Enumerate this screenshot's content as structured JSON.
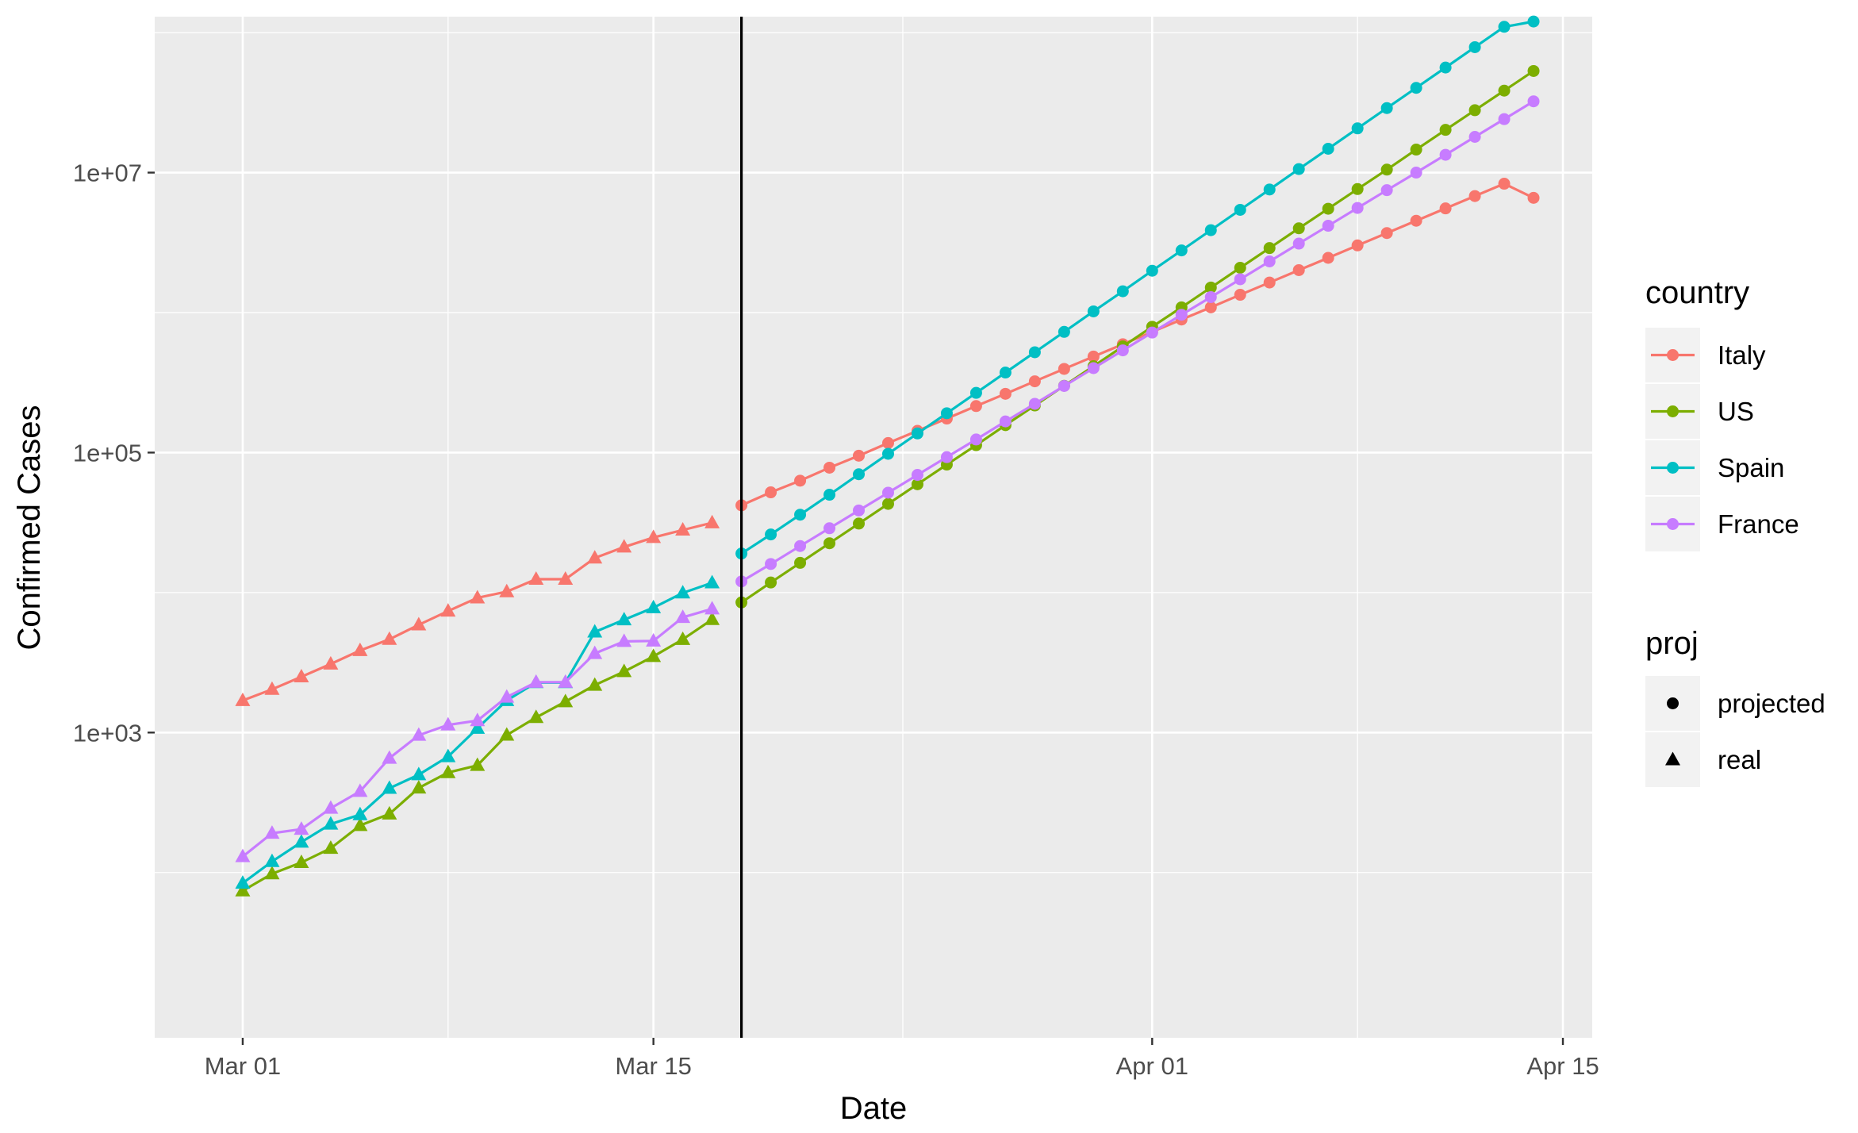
{
  "chart_data": {
    "type": "line",
    "x_axis": {
      "label": "Date",
      "ticks": [
        "Mar 01",
        "Mar 15",
        "Apr 01",
        "Apr 15"
      ],
      "tick_dates": [
        "2020-03-01",
        "2020-03-15",
        "2020-04-01",
        "2020-04-15"
      ],
      "range": [
        "2020-02-27",
        "2020-04-16"
      ]
    },
    "y_axis": {
      "label": "Confirmed Cases",
      "scale": "log10",
      "ticks": [
        "1e+03",
        "1e+05",
        "1e+07"
      ],
      "tick_values": [
        1000,
        100000,
        10000000
      ],
      "range": [
        6.6,
        130000000
      ]
    },
    "vline": {
      "x": "2020-03-18"
    },
    "grid": true,
    "legend_position": "right",
    "legends": {
      "color": {
        "title": "country",
        "entries": [
          "Italy",
          "US",
          "Spain",
          "France"
        ]
      },
      "shape": {
        "title": "proj",
        "entries": [
          "projected",
          "real"
        ]
      }
    },
    "colors": {
      "Italy": "#F8766D",
      "US": "#7CAE00",
      "Spain": "#00BFC4",
      "France": "#C77CFF"
    },
    "series": [
      {
        "name": "Italy",
        "real": {
          "x": [
            "2020-03-01",
            "2020-03-02",
            "2020-03-03",
            "2020-03-04",
            "2020-03-05",
            "2020-03-06",
            "2020-03-07",
            "2020-03-08",
            "2020-03-09",
            "2020-03-10",
            "2020-03-11",
            "2020-03-12",
            "2020-03-13",
            "2020-03-14",
            "2020-03-15",
            "2020-03-16",
            "2020-03-17"
          ],
          "y": [
            1694,
            2036,
            2502,
            3089,
            3858,
            4636,
            5883,
            7375,
            9172,
            10149,
            12462,
            12462,
            17660,
            21157,
            24747,
            27980,
            31506
          ]
        },
        "projected": {
          "x": [
            "2020-03-18",
            "2020-03-19",
            "2020-03-20",
            "2020-03-21",
            "2020-03-22",
            "2020-03-23",
            "2020-03-24",
            "2020-03-25",
            "2020-03-26",
            "2020-03-27",
            "2020-03-28",
            "2020-03-29",
            "2020-03-30",
            "2020-03-31",
            "2020-04-01",
            "2020-04-02",
            "2020-04-03",
            "2020-04-04",
            "2020-04-05",
            "2020-04-06",
            "2020-04-07",
            "2020-04-08",
            "2020-04-09",
            "2020-04-10",
            "2020-04-11",
            "2020-04-12",
            "2020-04-13",
            "2020-04-14"
          ],
          "y": [
            42000,
            52000,
            63000,
            78000,
            95000,
            117000,
            143000,
            175000,
            215000,
            263000,
            323000,
            396000,
            485000,
            594000,
            728000,
            892000,
            1090000,
            1340000,
            1640000,
            2010000,
            2460000,
            3020000,
            3700000,
            4530000,
            5550000,
            6800000,
            8330000,
            6600000.0
          ]
        }
      },
      {
        "name": "US",
        "real": {
          "x": [
            "2020-03-01",
            "2020-03-02",
            "2020-03-03",
            "2020-03-04",
            "2020-03-05",
            "2020-03-06",
            "2020-03-07",
            "2020-03-08",
            "2020-03-09",
            "2020-03-10",
            "2020-03-11",
            "2020-03-12",
            "2020-03-13",
            "2020-03-14",
            "2020-03-15",
            "2020-03-16",
            "2020-03-17"
          ],
          "y": [
            74,
            98,
            118,
            149,
            217,
            262,
            402,
            518,
            583,
            959,
            1281,
            1663,
            2179,
            2727,
            3499,
            4632,
            6421
          ]
        },
        "projected": {
          "x": [
            "2020-03-18",
            "2020-03-19",
            "2020-03-20",
            "2020-03-21",
            "2020-03-22",
            "2020-03-23",
            "2020-03-24",
            "2020-03-25",
            "2020-03-26",
            "2020-03-27",
            "2020-03-28",
            "2020-03-29",
            "2020-03-30",
            "2020-03-31",
            "2020-04-01",
            "2020-04-02",
            "2020-04-03",
            "2020-04-04",
            "2020-04-05",
            "2020-04-06",
            "2020-04-07",
            "2020-04-08",
            "2020-04-09",
            "2020-04-10",
            "2020-04-11",
            "2020-04-12",
            "2020-04-13",
            "2020-04-14"
          ],
          "y": [
            8500,
            11800,
            16300,
            22500,
            31100,
            43000,
            59400,
            82100,
            113000,
            157000,
            217000,
            300000,
            414000,
            573000,
            792000,
            1090000,
            1510000,
            2090000,
            2890000,
            4000000,
            5520000,
            7630000,
            10500000,
            14600000,
            20200000,
            27900000,
            38500000,
            53200000
          ]
        }
      },
      {
        "name": "Spain",
        "real": {
          "x": [
            "2020-03-01",
            "2020-03-02",
            "2020-03-03",
            "2020-03-04",
            "2020-03-05",
            "2020-03-06",
            "2020-03-07",
            "2020-03-08",
            "2020-03-09",
            "2020-03-10",
            "2020-03-11",
            "2020-03-12",
            "2020-03-13",
            "2020-03-14",
            "2020-03-15",
            "2020-03-16",
            "2020-03-17"
          ],
          "y": [
            84,
            120,
            165,
            222,
            259,
            400,
            500,
            673,
            1073,
            1695,
            2277,
            2277,
            5232,
            6391,
            7798,
            9942,
            11748
          ]
        },
        "projected": {
          "x": [
            "2020-03-18",
            "2020-03-19",
            "2020-03-20",
            "2020-03-21",
            "2020-03-22",
            "2020-03-23",
            "2020-03-24",
            "2020-03-25",
            "2020-03-26",
            "2020-03-27",
            "2020-03-28",
            "2020-03-29",
            "2020-03-30",
            "2020-03-31",
            "2020-04-01",
            "2020-04-02",
            "2020-04-03",
            "2020-04-04",
            "2020-04-05",
            "2020-04-06",
            "2020-04-07",
            "2020-04-08",
            "2020-04-09",
            "2020-04-10",
            "2020-04-11",
            "2020-04-12",
            "2020-04-13",
            "2020-04-14"
          ],
          "y": [
            19000,
            26000,
            36000,
            50000,
            70000,
            98000,
            137000,
            191000,
            267000,
            373000,
            521000,
            728000,
            1020000,
            1420000,
            1990000,
            2780000,
            3880000,
            5420000,
            7570000,
            10600000,
            14800000,
            20700000,
            28900000,
            40300000,
            56300000,
            78700000,
            110000000,
            120000000
          ]
        }
      },
      {
        "name": "France",
        "real": {
          "x": [
            "2020-03-01",
            "2020-03-02",
            "2020-03-03",
            "2020-03-04",
            "2020-03-05",
            "2020-03-06",
            "2020-03-07",
            "2020-03-08",
            "2020-03-09",
            "2020-03-10",
            "2020-03-11",
            "2020-03-12",
            "2020-03-13",
            "2020-03-14",
            "2020-03-15",
            "2020-03-16",
            "2020-03-17"
          ],
          "y": [
            130,
            191,
            204,
            288,
            380,
            656,
            957,
            1134,
            1217,
            1792,
            2289,
            2289,
            3672,
            4480,
            4513,
            6650,
            7652
          ]
        },
        "projected": {
          "x": [
            "2020-03-18",
            "2020-03-19",
            "2020-03-20",
            "2020-03-21",
            "2020-03-22",
            "2020-03-23",
            "2020-03-24",
            "2020-03-25",
            "2020-03-26",
            "2020-03-27",
            "2020-03-28",
            "2020-03-29",
            "2020-03-30",
            "2020-03-31",
            "2020-04-01",
            "2020-04-02",
            "2020-04-03",
            "2020-04-04",
            "2020-04-05",
            "2020-04-06",
            "2020-04-07",
            "2020-04-08",
            "2020-04-09",
            "2020-04-10",
            "2020-04-11",
            "2020-04-12",
            "2020-04-13",
            "2020-04-14"
          ],
          "y": [
            12000,
            16000,
            21500,
            28800,
            38600,
            51700,
            69300,
            92800,
            124000,
            167000,
            223000,
            299000,
            401000,
            537000,
            720000,
            965000,
            1290000,
            1730000,
            2320000,
            3110000,
            4170000,
            5590000,
            7490000,
            10000000,
            13400000,
            18000000,
            24100000,
            32300000
          ]
        }
      }
    ]
  }
}
